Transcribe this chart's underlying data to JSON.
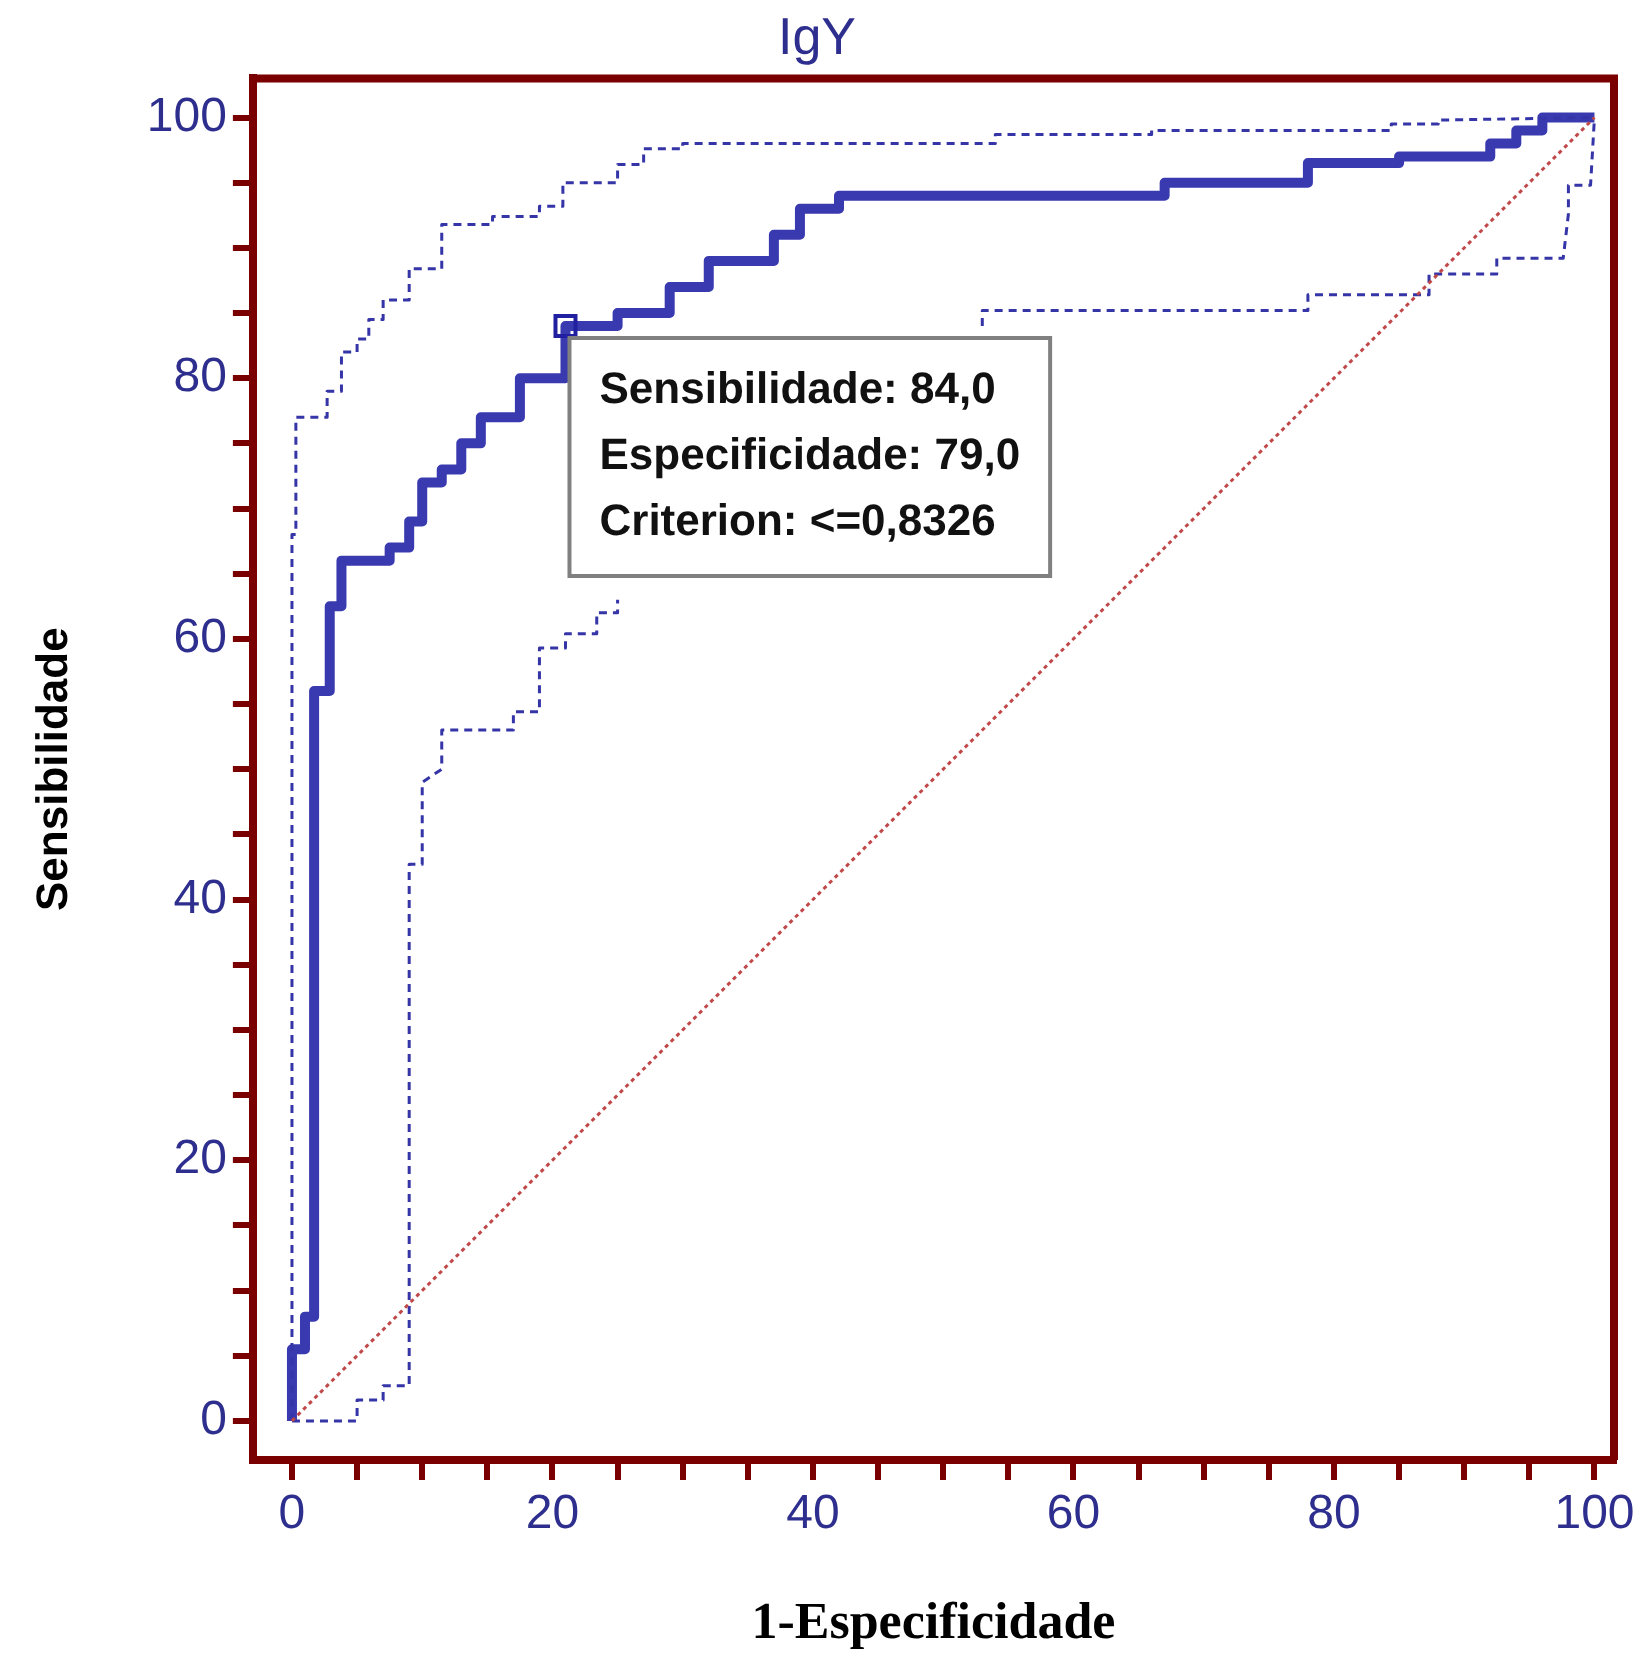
{
  "chart_data": {
    "type": "line",
    "title": "IgY",
    "xlabel": "1-Especificidade",
    "ylabel": "Sensibilidade",
    "xlim": [
      -3,
      101.5
    ],
    "ylim": [
      -3,
      103
    ],
    "xticks": [
      0,
      {
        "value": 5,
        "label": null
      },
      {
        "value": 10,
        "label": null
      },
      {
        "value": 15,
        "label": null
      },
      20,
      {
        "value": 25,
        "label": null
      },
      {
        "value": 30,
        "label": null
      },
      {
        "value": 35,
        "label": null
      },
      40,
      {
        "value": 45,
        "label": null
      },
      {
        "value": 50,
        "label": null
      },
      {
        "value": 55,
        "label": null
      },
      60,
      {
        "value": 65,
        "label": null
      },
      {
        "value": 70,
        "label": null
      },
      {
        "value": 75,
        "label": null
      },
      80,
      {
        "value": 85,
        "label": null
      },
      {
        "value": 90,
        "label": null
      },
      {
        "value": 95,
        "label": null
      },
      100
    ],
    "yticks": [
      0,
      {
        "value": 5,
        "label": null
      },
      {
        "value": 10,
        "label": null
      },
      {
        "value": 15,
        "label": null
      },
      20,
      {
        "value": 25,
        "label": null
      },
      {
        "value": 30,
        "label": null
      },
      {
        "value": 35,
        "label": null
      },
      40,
      {
        "value": 45,
        "label": null
      },
      {
        "value": 50,
        "label": null
      },
      {
        "value": 55,
        "label": null
      },
      60,
      {
        "value": 65,
        "label": null
      },
      {
        "value": 70,
        "label": null
      },
      {
        "value": 75,
        "label": null
      },
      80,
      {
        "value": 85,
        "label": null
      },
      {
        "value": 90,
        "label": null
      },
      {
        "value": 95,
        "label": null
      },
      100
    ],
    "grid": false,
    "legend": false,
    "marker": "none",
    "series": [
      {
        "color": "#c04848",
        "line_style": "dotted",
        "x": [
          0,
          100
        ],
        "values": [
          0,
          100
        ]
      },
      {
        "color": "#3535a8",
        "line_style": "dashed",
        "x": [
          0,
          0,
          0.3,
          0.3,
          2.7,
          2.7,
          3.8,
          3.8,
          5,
          5,
          5.9,
          5.9,
          7,
          7,
          9,
          9,
          11.5,
          11.5,
          15.4,
          15.4,
          19,
          19,
          20.8,
          20.8,
          25,
          25,
          27,
          27,
          30,
          30,
          54,
          54,
          66,
          66,
          84.4,
          84.4,
          88,
          88,
          100
        ],
        "values": [
          0,
          68,
          68,
          77,
          77,
          79,
          79,
          82,
          82,
          83,
          83,
          84.5,
          84.5,
          86,
          86,
          88.4,
          88.4,
          91.8,
          91.8,
          92.4,
          92.4,
          93.2,
          93.2,
          95,
          95,
          96.4,
          96.4,
          97.6,
          97.6,
          98,
          98,
          98.7,
          98.7,
          99,
          99,
          99.5,
          99.5,
          99.8,
          100
        ]
      },
      {
        "color": "#3535a8",
        "line_style": "dashed",
        "x": [
          0,
          5,
          5,
          7,
          7,
          9,
          9,
          10,
          10,
          11.5,
          11.5,
          17,
          17,
          19,
          19,
          21,
          21,
          23.4,
          23.4,
          25,
          25,
          40,
          53,
          53,
          55.7,
          55.7,
          78,
          78,
          87.3,
          87.3,
          92.5,
          92.5,
          97.6,
          98,
          98,
          99.7,
          100
        ],
        "values": [
          0,
          0,
          1.6,
          1.6,
          2.7,
          2.7,
          42.7,
          42.7,
          49,
          50,
          53,
          53,
          54.4,
          54.4,
          59.3,
          59.3,
          60.4,
          60.4,
          62,
          62,
          63,
          null,
          84,
          85.2,
          85.2,
          85.2,
          85.2,
          86.4,
          86.4,
          88,
          88,
          89.2,
          89.2,
          92.6,
          94.8,
          94.8,
          100
        ]
      },
      {
        "color": "#3a3ab0",
        "line_style": "solid",
        "x": [
          0,
          0,
          1,
          1,
          1.7,
          1.7,
          2.9,
          2.9,
          3.8,
          3.8,
          7.5,
          7.5,
          9,
          9,
          10,
          10,
          11.5,
          11.5,
          13,
          13,
          14.5,
          14.5,
          17.5,
          17.5,
          21,
          21,
          25,
          25,
          29,
          29,
          32,
          32,
          37,
          37,
          39,
          39,
          42,
          42,
          67,
          67,
          78,
          78,
          85,
          85,
          92,
          92,
          94,
          94,
          96,
          96,
          100
        ],
        "values": [
          0,
          5.5,
          5.5,
          8,
          8,
          56,
          56,
          62.5,
          62.5,
          66,
          66,
          67,
          67,
          69,
          69,
          72,
          72,
          73,
          73,
          75,
          75,
          77,
          77,
          80,
          80,
          84,
          84,
          85,
          85,
          87,
          87,
          89,
          89,
          91,
          91,
          93,
          93,
          94,
          94,
          95,
          95,
          96.5,
          96.5,
          97,
          97,
          98,
          98,
          99,
          99,
          100,
          100
        ]
      }
    ],
    "annotations": [
      {
        "text": "Sensibilidade: 84,0\nEspecificidade: 79,0\nCriterion: <=0,8326",
        "x": 21,
        "y": 84
      }
    ]
  }
}
